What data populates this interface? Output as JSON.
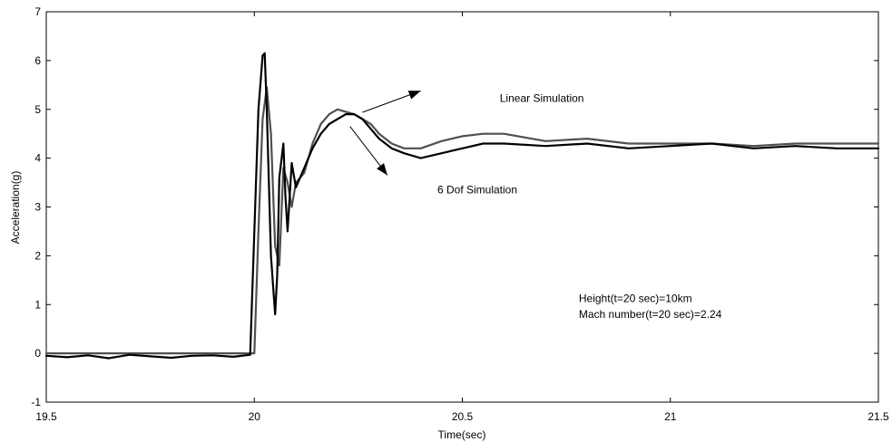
{
  "chart_data": {
    "type": "line",
    "xlabel": "Time(sec)",
    "ylabel": "Acceleration(g)",
    "xlim": [
      19.5,
      21.5
    ],
    "ylim": [
      -1,
      7
    ],
    "grid": false,
    "xticks": [
      19.5,
      20,
      20.5,
      21,
      21.5
    ],
    "xtick_labels": [
      "19.5",
      "20",
      "20.5",
      "21",
      "21.5"
    ],
    "yticks": [
      -1,
      0,
      1,
      2,
      3,
      4,
      5,
      6,
      7
    ],
    "ytick_labels": [
      "-1",
      "0",
      "1",
      "2",
      "3",
      "4",
      "5",
      "6",
      "7"
    ],
    "series": [
      {
        "name": "6 Dof Simulation",
        "color": "#000000",
        "x": [
          19.5,
          19.55,
          19.6,
          19.65,
          19.7,
          19.75,
          19.8,
          19.85,
          19.9,
          19.95,
          19.99,
          20.0,
          20.01,
          20.02,
          20.025,
          20.03,
          20.04,
          20.05,
          20.055,
          20.06,
          20.07,
          20.075,
          20.08,
          20.09,
          20.1,
          20.11,
          20.12,
          20.14,
          20.16,
          20.18,
          20.2,
          20.22,
          20.24,
          20.26,
          20.28,
          20.3,
          20.33,
          20.36,
          20.4,
          20.45,
          20.5,
          20.55,
          20.6,
          20.7,
          20.8,
          20.9,
          21.0,
          21.1,
          21.2,
          21.3,
          21.4,
          21.5
        ],
        "values": [
          -0.05,
          -0.08,
          -0.04,
          -0.1,
          -0.03,
          -0.06,
          -0.09,
          -0.05,
          -0.04,
          -0.07,
          -0.03,
          2.5,
          5.0,
          6.1,
          6.15,
          5.0,
          2.0,
          0.8,
          1.6,
          3.6,
          4.3,
          3.2,
          2.5,
          3.9,
          3.4,
          3.6,
          3.8,
          4.2,
          4.5,
          4.7,
          4.8,
          4.9,
          4.9,
          4.8,
          4.6,
          4.4,
          4.2,
          4.1,
          4.0,
          4.1,
          4.2,
          4.3,
          4.3,
          4.25,
          4.3,
          4.2,
          4.25,
          4.3,
          4.2,
          4.25,
          4.2,
          4.2
        ]
      },
      {
        "name": "Linear Simulation",
        "color": "#505050",
        "x": [
          19.5,
          19.6,
          19.7,
          19.8,
          19.9,
          20.0,
          20.01,
          20.02,
          20.03,
          20.04,
          20.05,
          20.06,
          20.07,
          20.08,
          20.09,
          20.1,
          20.12,
          20.14,
          20.16,
          20.18,
          20.2,
          20.22,
          20.24,
          20.26,
          20.28,
          20.3,
          20.33,
          20.36,
          20.4,
          20.45,
          20.5,
          20.55,
          20.6,
          20.7,
          20.8,
          20.9,
          21.0,
          21.1,
          21.2,
          21.3,
          21.4,
          21.5
        ],
        "values": [
          0.0,
          0.0,
          0.0,
          0.0,
          0.0,
          0.0,
          2.5,
          4.8,
          5.45,
          4.5,
          2.2,
          1.8,
          3.8,
          3.5,
          3.0,
          3.5,
          3.7,
          4.3,
          4.7,
          4.9,
          5.0,
          4.95,
          4.9,
          4.8,
          4.7,
          4.5,
          4.3,
          4.2,
          4.2,
          4.35,
          4.45,
          4.5,
          4.5,
          4.35,
          4.4,
          4.3,
          4.3,
          4.3,
          4.25,
          4.3,
          4.3,
          4.3
        ]
      }
    ],
    "annotations": [
      {
        "text": "Linear Simulation",
        "x": 20.59,
        "y": 5.15
      },
      {
        "text": "6 Dof Simulation",
        "x": 20.44,
        "y": 3.28
      },
      {
        "text": "Height(t=20 sec)=10km",
        "x": 20.78,
        "y": 1.05
      },
      {
        "text": "Mach number(t=20 sec)=2.24",
        "x": 20.78,
        "y": 0.73
      }
    ],
    "arrows": [
      {
        "from": [
          20.26,
          4.94
        ],
        "to": [
          20.4,
          5.38
        ]
      },
      {
        "from": [
          20.23,
          4.65
        ],
        "to": [
          20.32,
          3.65
        ]
      }
    ]
  }
}
